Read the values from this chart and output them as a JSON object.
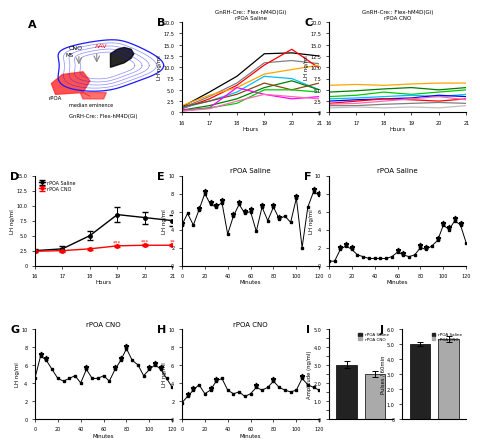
{
  "panel_B_title": "GnRH-Cre:: Flex-hM4D(Gi)\nrPOA Saline",
  "panel_C_title": "GnRH-Cre:: Flex-hM4D(Gi)\nrPOA CNO",
  "panel_E_title": "rPOA Saline",
  "panel_F_title": "rPOA Saline",
  "panel_G_title": "rPOA CNO",
  "panel_H_title": "rPOA CNO",
  "hours": [
    16,
    17,
    18,
    19,
    20,
    21
  ],
  "B_lines": [
    {
      "color": "#000000",
      "values": [
        1.2,
        4.5,
        8.0,
        13.0,
        13.2,
        12.5
      ]
    },
    {
      "color": "#808080",
      "values": [
        1.0,
        3.5,
        6.5,
        11.0,
        11.5,
        10.8
      ]
    },
    {
      "color": "#FF0000",
      "values": [
        0.8,
        3.0,
        6.0,
        10.5,
        14.0,
        9.8
      ]
    },
    {
      "color": "#FFA500",
      "values": [
        1.5,
        3.8,
        5.5,
        8.5,
        9.5,
        10.5
      ]
    },
    {
      "color": "#00BFFF",
      "values": [
        1.0,
        2.5,
        4.5,
        8.0,
        7.5,
        5.0
      ]
    },
    {
      "color": "#008000",
      "values": [
        0.5,
        1.5,
        3.0,
        5.5,
        7.0,
        5.0
      ]
    },
    {
      "color": "#8B4513",
      "values": [
        1.2,
        2.5,
        4.0,
        6.5,
        5.0,
        6.5
      ]
    },
    {
      "color": "#FF00FF",
      "values": [
        0.5,
        1.0,
        5.5,
        4.0,
        3.0,
        3.5
      ]
    },
    {
      "color": "#00CC00",
      "values": [
        0.3,
        1.0,
        2.0,
        5.0,
        5.0,
        4.5
      ]
    },
    {
      "color": "#FF69B4",
      "values": [
        0.3,
        0.8,
        2.5,
        4.0,
        3.5,
        3.0
      ]
    }
  ],
  "C_lines": [
    {
      "color": "#FFA500",
      "values": [
        6.0,
        6.2,
        6.0,
        6.3,
        6.5,
        6.5
      ]
    },
    {
      "color": "#008000",
      "values": [
        4.5,
        4.8,
        5.2,
        5.5,
        5.0,
        5.5
      ]
    },
    {
      "color": "#00CC00",
      "values": [
        3.5,
        3.8,
        4.5,
        4.0,
        4.5,
        5.0
      ]
    },
    {
      "color": "#00BFFF",
      "values": [
        3.0,
        3.2,
        3.5,
        3.8,
        3.5,
        4.0
      ]
    },
    {
      "color": "#0000FF",
      "values": [
        2.5,
        2.8,
        3.0,
        3.2,
        3.8,
        3.5
      ]
    },
    {
      "color": "#FF0000",
      "values": [
        2.0,
        2.5,
        3.0,
        2.8,
        2.5,
        3.0
      ]
    },
    {
      "color": "#FF69B4",
      "values": [
        1.8,
        2.0,
        2.5,
        3.0,
        3.5,
        2.8
      ]
    },
    {
      "color": "#808080",
      "values": [
        1.5,
        1.5,
        1.8,
        2.0,
        2.2,
        2.0
      ]
    },
    {
      "color": "#C0C0C0",
      "values": [
        1.0,
        1.2,
        1.0,
        1.2,
        1.0,
        1.5
      ]
    }
  ],
  "D_saline_mean": [
    2.5,
    2.8,
    5.0,
    8.5,
    8.0,
    7.5
  ],
  "D_saline_err": [
    0.3,
    0.4,
    0.8,
    1.2,
    1.0,
    0.9
  ],
  "D_cno_mean": [
    2.4,
    2.5,
    2.8,
    3.3,
    3.4,
    3.4
  ],
  "D_cno_err": [
    0.15,
    0.15,
    0.15,
    0.2,
    0.2,
    0.2
  ],
  "E_minutes": [
    0,
    5,
    10,
    15,
    20,
    25,
    30,
    35,
    40,
    45,
    50,
    55,
    60,
    65,
    70,
    75,
    80,
    85,
    90,
    95,
    100,
    105,
    110,
    115,
    120
  ],
  "E_values": [
    4.5,
    5.8,
    4.5,
    6.2,
    8.0,
    6.8,
    6.5,
    7.0,
    3.5,
    5.5,
    6.8,
    5.8,
    6.0,
    3.8,
    6.5,
    5.0,
    6.5,
    5.2,
    5.5,
    4.8,
    7.5,
    2.0,
    6.5,
    8.2,
    7.8
  ],
  "E_pulse": [
    1,
    0,
    0,
    1,
    1,
    1,
    1,
    1,
    0,
    1,
    1,
    1,
    1,
    0,
    1,
    0,
    1,
    1,
    0,
    0,
    1,
    0,
    0,
    1,
    1
  ],
  "F_minutes": [
    0,
    5,
    10,
    15,
    20,
    25,
    30,
    35,
    40,
    45,
    50,
    55,
    60,
    65,
    70,
    75,
    80,
    85,
    90,
    95,
    100,
    105,
    110,
    115,
    120
  ],
  "F_values": [
    0.5,
    0.5,
    1.8,
    2.2,
    1.8,
    1.2,
    1.0,
    0.8,
    0.8,
    0.8,
    0.8,
    1.0,
    1.5,
    1.2,
    1.0,
    1.2,
    2.0,
    1.8,
    2.2,
    2.8,
    4.5,
    4.0,
    5.0,
    4.5,
    2.5
  ],
  "F_pulse": [
    0,
    0,
    1,
    1,
    1,
    0,
    0,
    0,
    0,
    0,
    0,
    0,
    1,
    1,
    0,
    0,
    1,
    1,
    0,
    1,
    1,
    1,
    1,
    1,
    0
  ],
  "G_minutes": [
    0,
    5,
    10,
    15,
    20,
    25,
    30,
    35,
    40,
    45,
    50,
    55,
    60,
    65,
    70,
    75,
    80,
    85,
    90,
    95,
    100,
    105,
    110,
    115,
    120
  ],
  "G_values": [
    4.5,
    7.0,
    6.5,
    5.5,
    4.5,
    4.2,
    4.5,
    4.8,
    4.0,
    5.5,
    4.5,
    4.5,
    4.8,
    4.2,
    5.5,
    6.5,
    7.8,
    6.5,
    6.0,
    4.8,
    5.5,
    6.0,
    5.5,
    4.5,
    3.5
  ],
  "G_pulse": [
    0,
    1,
    1,
    0,
    0,
    0,
    0,
    0,
    0,
    1,
    0,
    0,
    0,
    0,
    1,
    1,
    1,
    0,
    0,
    0,
    1,
    1,
    1,
    0,
    0
  ],
  "H_minutes": [
    0,
    5,
    10,
    15,
    20,
    25,
    30,
    35,
    40,
    45,
    50,
    55,
    60,
    65,
    70,
    75,
    80,
    85,
    90,
    95,
    100,
    105,
    110,
    115,
    120
  ],
  "H_values": [
    1.8,
    2.5,
    3.2,
    3.8,
    2.8,
    3.2,
    4.2,
    4.5,
    3.2,
    2.8,
    3.0,
    2.5,
    2.8,
    3.5,
    3.2,
    3.5,
    4.2,
    3.5,
    3.2,
    3.0,
    3.2,
    4.5,
    3.8,
    3.5,
    3.2
  ],
  "H_pulse": [
    0,
    1,
    1,
    0,
    0,
    1,
    1,
    0,
    0,
    0,
    0,
    0,
    0,
    1,
    0,
    0,
    1,
    0,
    0,
    0,
    0,
    1,
    0,
    0,
    0
  ],
  "I_saline_amp": 3.0,
  "I_cno_amp": 2.5,
  "I_saline_err": 0.2,
  "I_cno_err": 0.15,
  "J_saline_pulses": 5.0,
  "J_cno_pulses": 5.3,
  "J_saline_err": 0.15,
  "J_cno_err": 0.2,
  "ylabel_LH": "LH ng/ml",
  "xlabel_hours": "Hours",
  "xlabel_minutes": "Minutes",
  "ylabel_amplitude": "Amplitude (ng/ml)",
  "ylabel_pulses": "Pulses / 60min",
  "color_saline": "#000000",
  "color_cno": "#FF0000",
  "color_bar_saline": "#222222",
  "color_bar_cno": "#AAAAAA"
}
